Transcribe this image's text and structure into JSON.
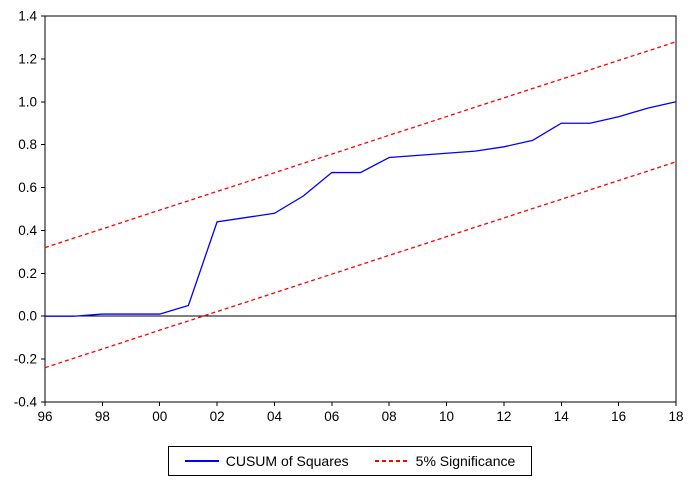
{
  "chart_data": {
    "type": "line",
    "title": "",
    "xlabel": "",
    "ylabel": "",
    "xlim": [
      1996,
      2018
    ],
    "ylim": [
      -0.4,
      1.4
    ],
    "x_ticks": [
      1996,
      1998,
      2000,
      2002,
      2004,
      2006,
      2008,
      2010,
      2012,
      2014,
      2016,
      2018
    ],
    "x_tick_labels": [
      "96",
      "98",
      "00",
      "02",
      "04",
      "06",
      "08",
      "10",
      "12",
      "14",
      "16",
      "18"
    ],
    "y_ticks": [
      -0.4,
      -0.2,
      0.0,
      0.2,
      0.4,
      0.6,
      0.8,
      1.0,
      1.2,
      1.4
    ],
    "zero_line": true,
    "grid": false,
    "frame_color": "#000000",
    "legend_position": "bottom-center",
    "x": [
      1996,
      1997,
      1998,
      1999,
      2000,
      2001,
      2002,
      2003,
      2004,
      2005,
      2006,
      2007,
      2008,
      2009,
      2010,
      2011,
      2012,
      2013,
      2014,
      2015,
      2016,
      2017,
      2018
    ],
    "series": [
      {
        "id": "cusum-squares-line",
        "name": "CUSUM of Squares",
        "color": "#0000ff",
        "style": "solid",
        "values": [
          0.0,
          0.0,
          0.01,
          0.01,
          0.01,
          0.05,
          0.44,
          0.46,
          0.48,
          0.56,
          0.67,
          0.67,
          0.74,
          0.75,
          0.76,
          0.77,
          0.79,
          0.82,
          0.9,
          0.9,
          0.93,
          0.97,
          1.0
        ]
      },
      {
        "id": "significance-upper-line",
        "name": "5% Significance (upper bound)",
        "color": "#ff0000",
        "style": "dashed",
        "values": [
          0.32,
          0.364,
          0.407,
          0.451,
          0.495,
          0.538,
          0.582,
          0.625,
          0.669,
          0.713,
          0.756,
          0.8,
          0.844,
          0.887,
          0.931,
          0.975,
          1.018,
          1.062,
          1.105,
          1.149,
          1.193,
          1.236,
          1.28
        ]
      },
      {
        "id": "significance-lower-line",
        "name": "5% Significance (lower bound)",
        "color": "#ff0000",
        "style": "dashed",
        "values": [
          -0.24,
          -0.196,
          -0.153,
          -0.109,
          -0.065,
          -0.022,
          0.022,
          0.065,
          0.109,
          0.153,
          0.196,
          0.24,
          0.284,
          0.327,
          0.371,
          0.415,
          0.458,
          0.502,
          0.545,
          0.589,
          0.633,
          0.676,
          0.72
        ]
      }
    ],
    "legend": [
      {
        "label": "CUSUM of Squares",
        "color": "#0000ff",
        "style": "solid"
      },
      {
        "label": "5% Significance",
        "color": "#ff0000",
        "style": "dashed"
      }
    ]
  }
}
